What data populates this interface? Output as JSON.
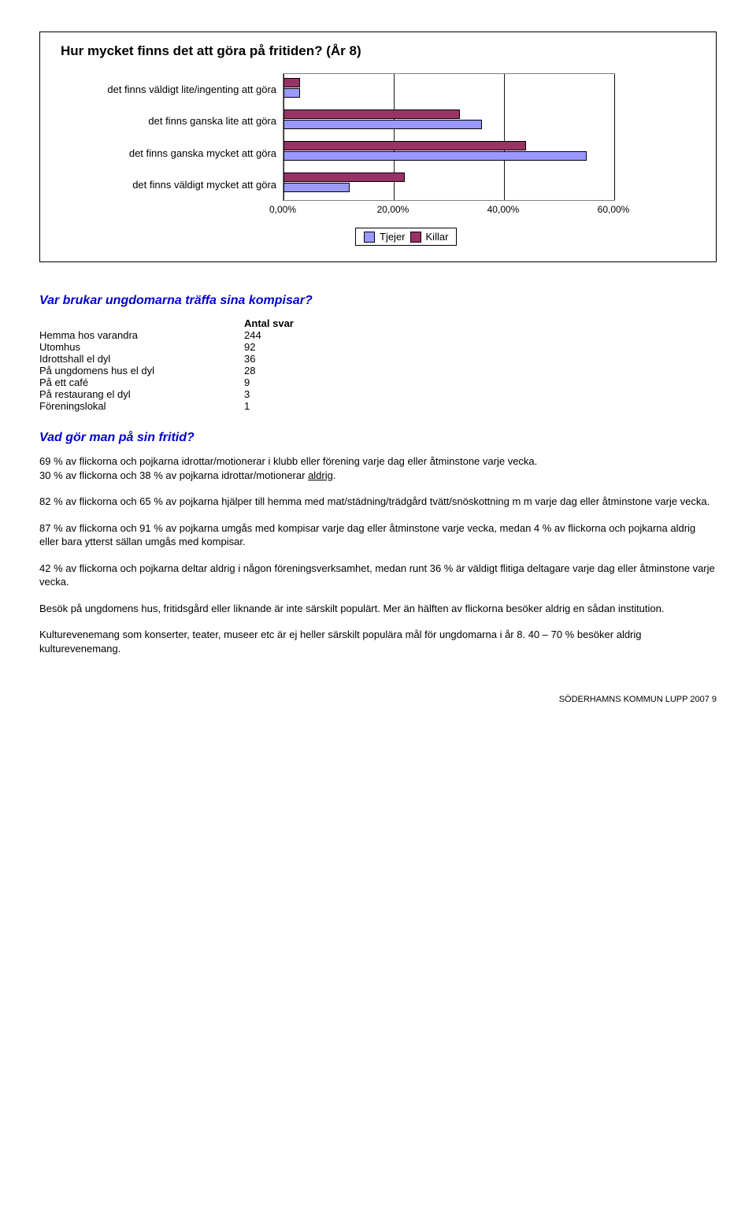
{
  "chart": {
    "title": "Hur mycket finns det att göra på fritiden? (År 8)",
    "type": "bar",
    "categories": [
      "det finns väldigt lite/ingenting att göra",
      "det finns ganska lite att göra",
      "det finns ganska mycket att göra",
      "det finns väldigt mycket att göra"
    ],
    "series": [
      {
        "name": "Tjejer",
        "color": "#9999ff",
        "values": [
          3.0,
          36.0,
          55.0,
          12.0
        ]
      },
      {
        "name": "Killar",
        "color": "#993366",
        "values": [
          3.0,
          32.0,
          44.0,
          22.0
        ]
      }
    ],
    "x_ticks": [
      "0,00%",
      "20,00%",
      "40,00%",
      "60,00%"
    ],
    "x_max": 60,
    "background_color": "#ffffff",
    "grid_color": "#000000",
    "bar_border": "#000000",
    "label_fontsize": 13,
    "title_fontsize": 17,
    "plot_bg_outer": "#c0c0c0"
  },
  "section1": {
    "heading": "Var brukar ungdomarna träffa sina kompisar?"
  },
  "table": {
    "header": {
      "col1": "",
      "col2": "Antal svar"
    },
    "rows": [
      {
        "label": "Hemma hos varandra",
        "value": "244"
      },
      {
        "label": "Utomhus",
        "value": "92"
      },
      {
        "label": "Idrottshall el dyl",
        "value": "36"
      },
      {
        "label": "På ungdomens hus el dyl",
        "value": "28"
      },
      {
        "label": "På ett café",
        "value": "9"
      },
      {
        "label": "På restaurang el dyl",
        "value": "3"
      },
      {
        "label": "Föreningslokal",
        "value": "1"
      }
    ]
  },
  "section2": {
    "heading": "Vad gör man på sin fritid?"
  },
  "paragraphs": {
    "p1a": "69 % av flickorna och pojkarna idrottar/motionerar i klubb eller förening varje dag eller åtminstone varje vecka.",
    "p1b_prefix": "30 % av flickorna och 38 % av pojkarna idrottar/motionerar ",
    "p1b_u": "aldrig",
    "p1b_suffix": ".",
    "p2": "82 % av flickorna och 65 % av pojkarna hjälper till hemma med mat/städning/trädgård tvätt/snöskottning m m varje dag eller åtminstone varje vecka.",
    "p3": "87 % av flickorna och 91 % av pojkarna umgås med kompisar varje dag eller åtminstone varje vecka, medan 4 % av flickorna och pojkarna aldrig eller bara ytterst sällan umgås med kompisar.",
    "p4": "42 % av flickorna och pojkarna deltar aldrig i någon föreningsverksamhet, medan runt 36 % är väldigt flitiga deltagare varje dag eller åtminstone varje vecka.",
    "p5": "Besök på ungdomens hus, fritidsgård eller liknande är inte särskilt populärt. Mer än hälften av flickorna besöker aldrig en sådan institution.",
    "p6": "Kulturevenemang som konserter, teater, museer etc är ej heller särskilt populära mål för ungdomarna i år 8. 40 – 70 % besöker aldrig kulturevenemang."
  },
  "footer": "SÖDERHAMNS KOMMUN LUPP 2007 9"
}
